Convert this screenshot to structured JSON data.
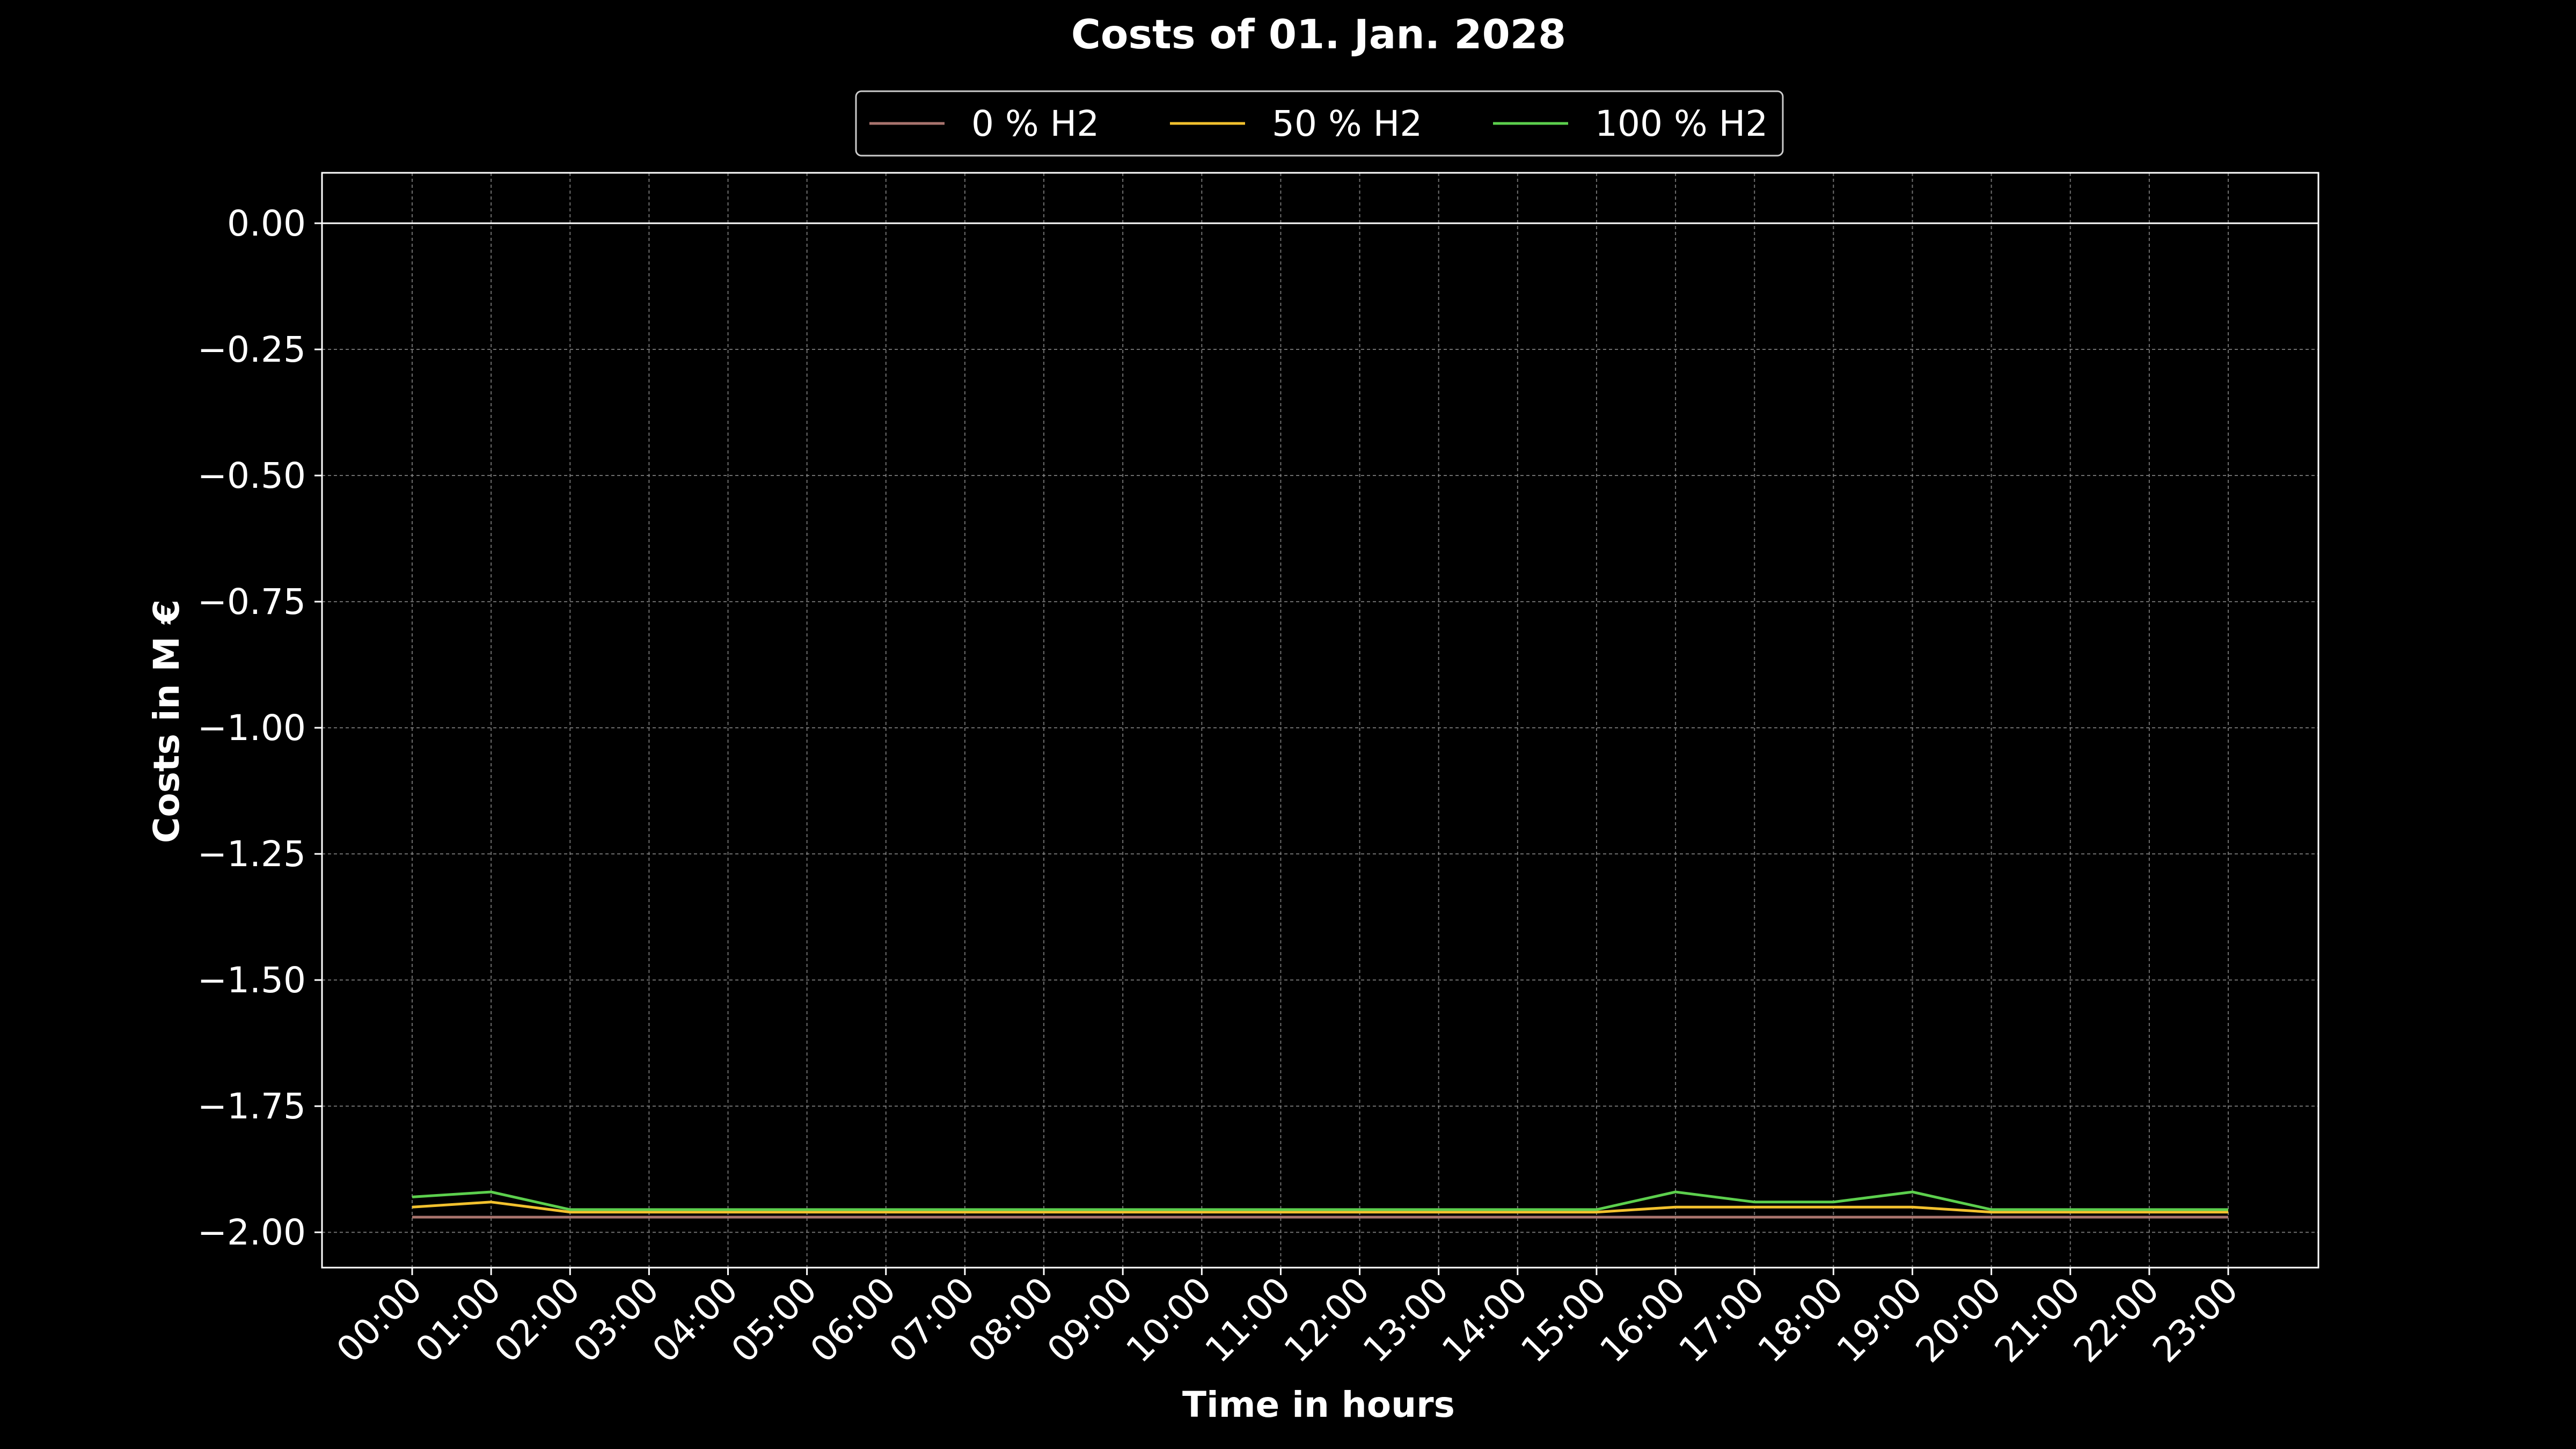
{
  "chart_data": {
    "type": "line",
    "title": "Costs of 01. Jan. 2028",
    "xlabel": "Time in hours",
    "ylabel": "Costs in M €",
    "x": [
      "00:00",
      "01:00",
      "02:00",
      "03:00",
      "04:00",
      "05:00",
      "06:00",
      "07:00",
      "08:00",
      "09:00",
      "10:00",
      "11:00",
      "12:00",
      "13:00",
      "14:00",
      "15:00",
      "16:00",
      "17:00",
      "18:00",
      "19:00",
      "20:00",
      "21:00",
      "22:00",
      "23:00"
    ],
    "ylim": [
      -2.07,
      0.1
    ],
    "yticks": [
      0.0,
      -0.25,
      -0.5,
      -0.75,
      -1.0,
      -1.25,
      -1.5,
      -1.75,
      -2.0
    ],
    "ytick_labels": [
      "0.00",
      "−0.25",
      "−0.50",
      "−0.75",
      "−1.00",
      "−1.25",
      "−1.50",
      "−1.75",
      "−2.00"
    ],
    "grid": true,
    "legend_position": "top-center",
    "reference_line_y": 0.0,
    "series": [
      {
        "name": "0 % H2",
        "color": "#a9746e",
        "values": [
          -1.97,
          -1.97,
          -1.97,
          -1.97,
          -1.97,
          -1.97,
          -1.97,
          -1.97,
          -1.97,
          -1.97,
          -1.97,
          -1.97,
          -1.97,
          -1.97,
          -1.97,
          -1.97,
          -1.97,
          -1.97,
          -1.97,
          -1.97,
          -1.97,
          -1.97,
          -1.97,
          -1.97
        ]
      },
      {
        "name": "50 % H2",
        "color": "#f2c12e",
        "values": [
          -1.95,
          -1.94,
          -1.96,
          -1.96,
          -1.96,
          -1.96,
          -1.96,
          -1.96,
          -1.96,
          -1.96,
          -1.96,
          -1.96,
          -1.96,
          -1.96,
          -1.96,
          -1.96,
          -1.95,
          -1.95,
          -1.95,
          -1.95,
          -1.96,
          -1.96,
          -1.96,
          -1.96
        ]
      },
      {
        "name": "100 % H2",
        "color": "#5ccf4d",
        "values": [
          -1.93,
          -1.92,
          -1.955,
          -1.955,
          -1.955,
          -1.955,
          -1.955,
          -1.955,
          -1.955,
          -1.955,
          -1.955,
          -1.955,
          -1.955,
          -1.955,
          -1.955,
          -1.955,
          -1.92,
          -1.94,
          -1.94,
          -1.92,
          -1.955,
          -1.955,
          -1.955,
          -1.955
        ]
      }
    ]
  }
}
